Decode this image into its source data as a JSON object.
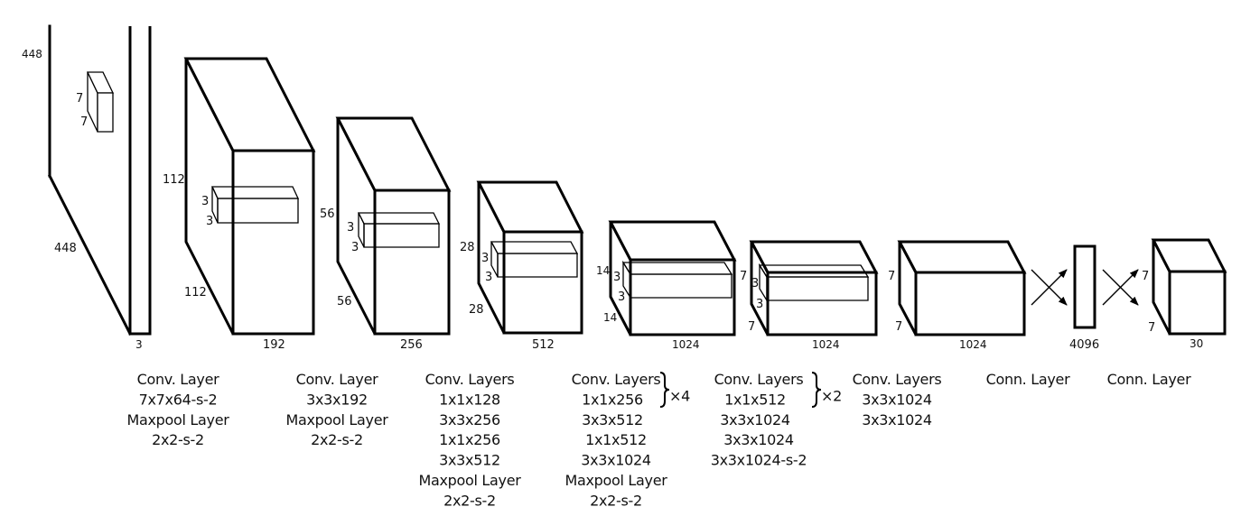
{
  "colors": {
    "stroke": "#000000",
    "background": "#ffffff"
  },
  "input": {
    "height": "448",
    "width": "448",
    "channels": "3",
    "kernel_h": "7",
    "kernel_w": "7"
  },
  "blocks": [
    {
      "h": "112",
      "w": "112",
      "d": "192",
      "k1": "3",
      "k2": "3"
    },
    {
      "h": "56",
      "w": "56",
      "d": "256",
      "k1": "3",
      "k2": "3"
    },
    {
      "h": "28",
      "w": "28",
      "d": "512",
      "k1": "3",
      "k2": "3"
    },
    {
      "h": "14",
      "w": "14",
      "d": "1024",
      "k1": "3",
      "k2": "3"
    },
    {
      "h": "7",
      "w": "7",
      "d": "1024",
      "k1": "3",
      "k2": "3"
    },
    {
      "h": "7",
      "w": "7",
      "d": "1024"
    },
    {
      "d": "4096"
    },
    {
      "h": "7",
      "w": "7",
      "d": "30"
    }
  ],
  "captions": [
    {
      "lines": [
        "Conv. Layer",
        "7x7x64-s-2",
        "Maxpool Layer",
        "2x2-s-2"
      ]
    },
    {
      "lines": [
        "Conv. Layer",
        "3x3x192",
        "Maxpool Layer",
        "2x2-s-2"
      ]
    },
    {
      "lines": [
        "Conv. Layers",
        "1x1x128",
        "3x3x256",
        "1x1x256",
        "3x3x512",
        "Maxpool Layer",
        "2x2-s-2"
      ]
    },
    {
      "lines": [
        "Conv. Layers",
        "1x1x256",
        "3x3x512",
        "1x1x512",
        "3x3x1024",
        "Maxpool Layer",
        "2x2-s-2"
      ],
      "repeat": "×4"
    },
    {
      "lines": [
        "Conv. Layers",
        "1x1x512",
        "3x3x1024",
        "3x3x1024",
        "3x3x1024-s-2"
      ],
      "repeat": "×2"
    },
    {
      "lines": [
        "Conv. Layers",
        "3x3x1024",
        "3x3x1024"
      ]
    },
    {
      "lines": [
        "Conn. Layer"
      ]
    },
    {
      "lines": [
        "Conn. Layer"
      ]
    }
  ]
}
